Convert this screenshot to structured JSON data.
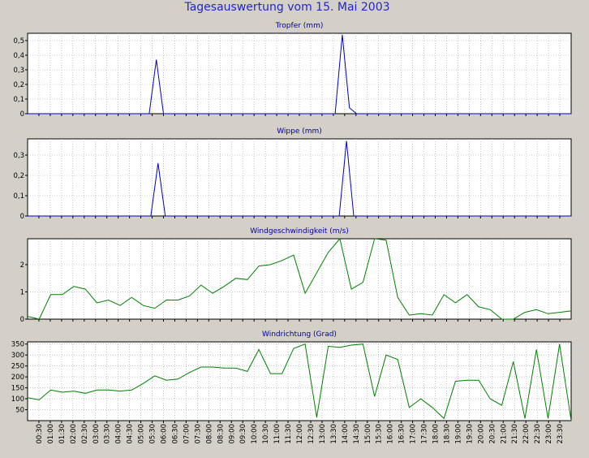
{
  "title": "Tagesauswertung vom 15. Mai 2003",
  "colors": {
    "background": "#d4d0c8",
    "plot_bg": "#ffffff",
    "grid": "#a0a0a0",
    "blue": "#0000c8",
    "green": "#008000",
    "title": "#2028c8"
  },
  "chart_data": [
    {
      "type": "line",
      "title": "Tropfer (mm)",
      "color": "#0000c8",
      "ylim": [
        0,
        0.55
      ],
      "yticks": [
        0,
        0.1,
        0.2,
        0.3,
        0.4,
        0.5
      ],
      "ytick_labels": [
        "0",
        "0,1",
        "0,2",
        "0,3",
        "0,4",
        "0,5"
      ],
      "grid": true,
      "values": [
        0,
        0,
        0,
        0,
        0,
        0,
        0,
        0,
        0,
        0,
        0,
        0,
        0,
        0,
        0,
        0,
        0,
        0,
        0.37,
        0,
        0,
        0,
        0,
        0,
        0,
        0,
        0,
        0,
        0,
        0,
        0,
        0,
        0,
        0,
        0,
        0,
        0,
        0,
        0,
        0,
        0,
        0,
        0,
        0,
        0.54,
        0.04,
        0,
        0,
        0,
        0,
        0,
        0,
        0,
        0,
        0,
        0,
        0,
        0,
        0,
        0,
        0,
        0,
        0,
        0,
        0,
        0,
        0,
        0,
        0,
        0,
        0,
        0,
        0,
        0,
        0,
        0,
        0
      ]
    },
    {
      "type": "line",
      "title": "Wippe (mm)",
      "color": "#0000c8",
      "ylim": [
        0,
        0.38
      ],
      "yticks": [
        0,
        0.1,
        0.2,
        0.3
      ],
      "ytick_labels": [
        "0",
        "0,1",
        "0,2",
        "0,3"
      ],
      "grid": true,
      "values": [
        0,
        0,
        0,
        0,
        0,
        0,
        0,
        0,
        0,
        0,
        0,
        0,
        0,
        0,
        0,
        0,
        0,
        0,
        0.26,
        0,
        0,
        0,
        0,
        0,
        0,
        0,
        0,
        0,
        0,
        0,
        0,
        0,
        0,
        0,
        0,
        0,
        0,
        0,
        0,
        0,
        0,
        0,
        0,
        0,
        0.37,
        0,
        0,
        0,
        0,
        0,
        0,
        0,
        0,
        0,
        0,
        0,
        0,
        0,
        0,
        0,
        0,
        0,
        0,
        0,
        0,
        0,
        0,
        0,
        0,
        0,
        0,
        0,
        0,
        0,
        0,
        0
      ]
    },
    {
      "type": "line",
      "title": "Windgeschwindigkeit (m/s)",
      "color": "#008000",
      "ylim": [
        0,
        2.95
      ],
      "yticks": [
        0,
        1,
        2
      ],
      "ytick_labels": [
        "0",
        "1",
        "2"
      ],
      "grid": true,
      "values": [
        0.1,
        0,
        0.9,
        0.9,
        1.2,
        1.1,
        0.6,
        0.7,
        0.5,
        0.8,
        0.5,
        0.4,
        0.7,
        0.7,
        0.85,
        1.25,
        0.95,
        1.2,
        1.5,
        1.45,
        1.95,
        2.0,
        2.15,
        2.35,
        0.95,
        1.7,
        2.45,
        2.95,
        1.1,
        1.35,
        2.95,
        2.9,
        0.8,
        0.15,
        0.2,
        0.15,
        0.9,
        0.6,
        0.9,
        0.45,
        0.35,
        0.0,
        0.0,
        0.25,
        0.35,
        0.2,
        0.25,
        0.3
      ]
    },
    {
      "type": "line",
      "title": "Windrichtung (Grad)",
      "color": "#008000",
      "ylim": [
        0,
        360
      ],
      "yticks": [
        50,
        100,
        150,
        200,
        250,
        300,
        350
      ],
      "ytick_labels": [
        "50",
        "100",
        "150",
        "200",
        "250",
        "300",
        "350"
      ],
      "grid": true,
      "values": [
        105,
        95,
        140,
        130,
        135,
        125,
        140,
        140,
        135,
        140,
        170,
        205,
        185,
        190,
        220,
        245,
        245,
        240,
        240,
        225,
        325,
        215,
        215,
        330,
        350,
        15,
        340,
        335,
        345,
        350,
        110,
        300,
        280,
        60,
        100,
        60,
        10,
        180,
        185,
        185,
        100,
        70,
        270,
        10,
        325,
        10,
        350,
        0
      ]
    }
  ],
  "x_labels": [
    "00:30",
    "01:00",
    "01:30",
    "02:00",
    "02:30",
    "03:00",
    "03:30",
    "04:00",
    "04:30",
    "05:00",
    "05:30",
    "06:00",
    "06:30",
    "07:00",
    "07:30",
    "08:00",
    "08:30",
    "09:00",
    "09:30",
    "10:00",
    "10:30",
    "11:00",
    "11:30",
    "12:00",
    "12:30",
    "13:00",
    "13:30",
    "14:00",
    "14:30",
    "15:00",
    "15:30",
    "16:00",
    "16:30",
    "17:00",
    "17:30",
    "18:00",
    "18:30",
    "19:00",
    "19:30",
    "20:00",
    "20:30",
    "21:00",
    "21:30",
    "22:00",
    "22:30",
    "23:00",
    "23:30"
  ]
}
